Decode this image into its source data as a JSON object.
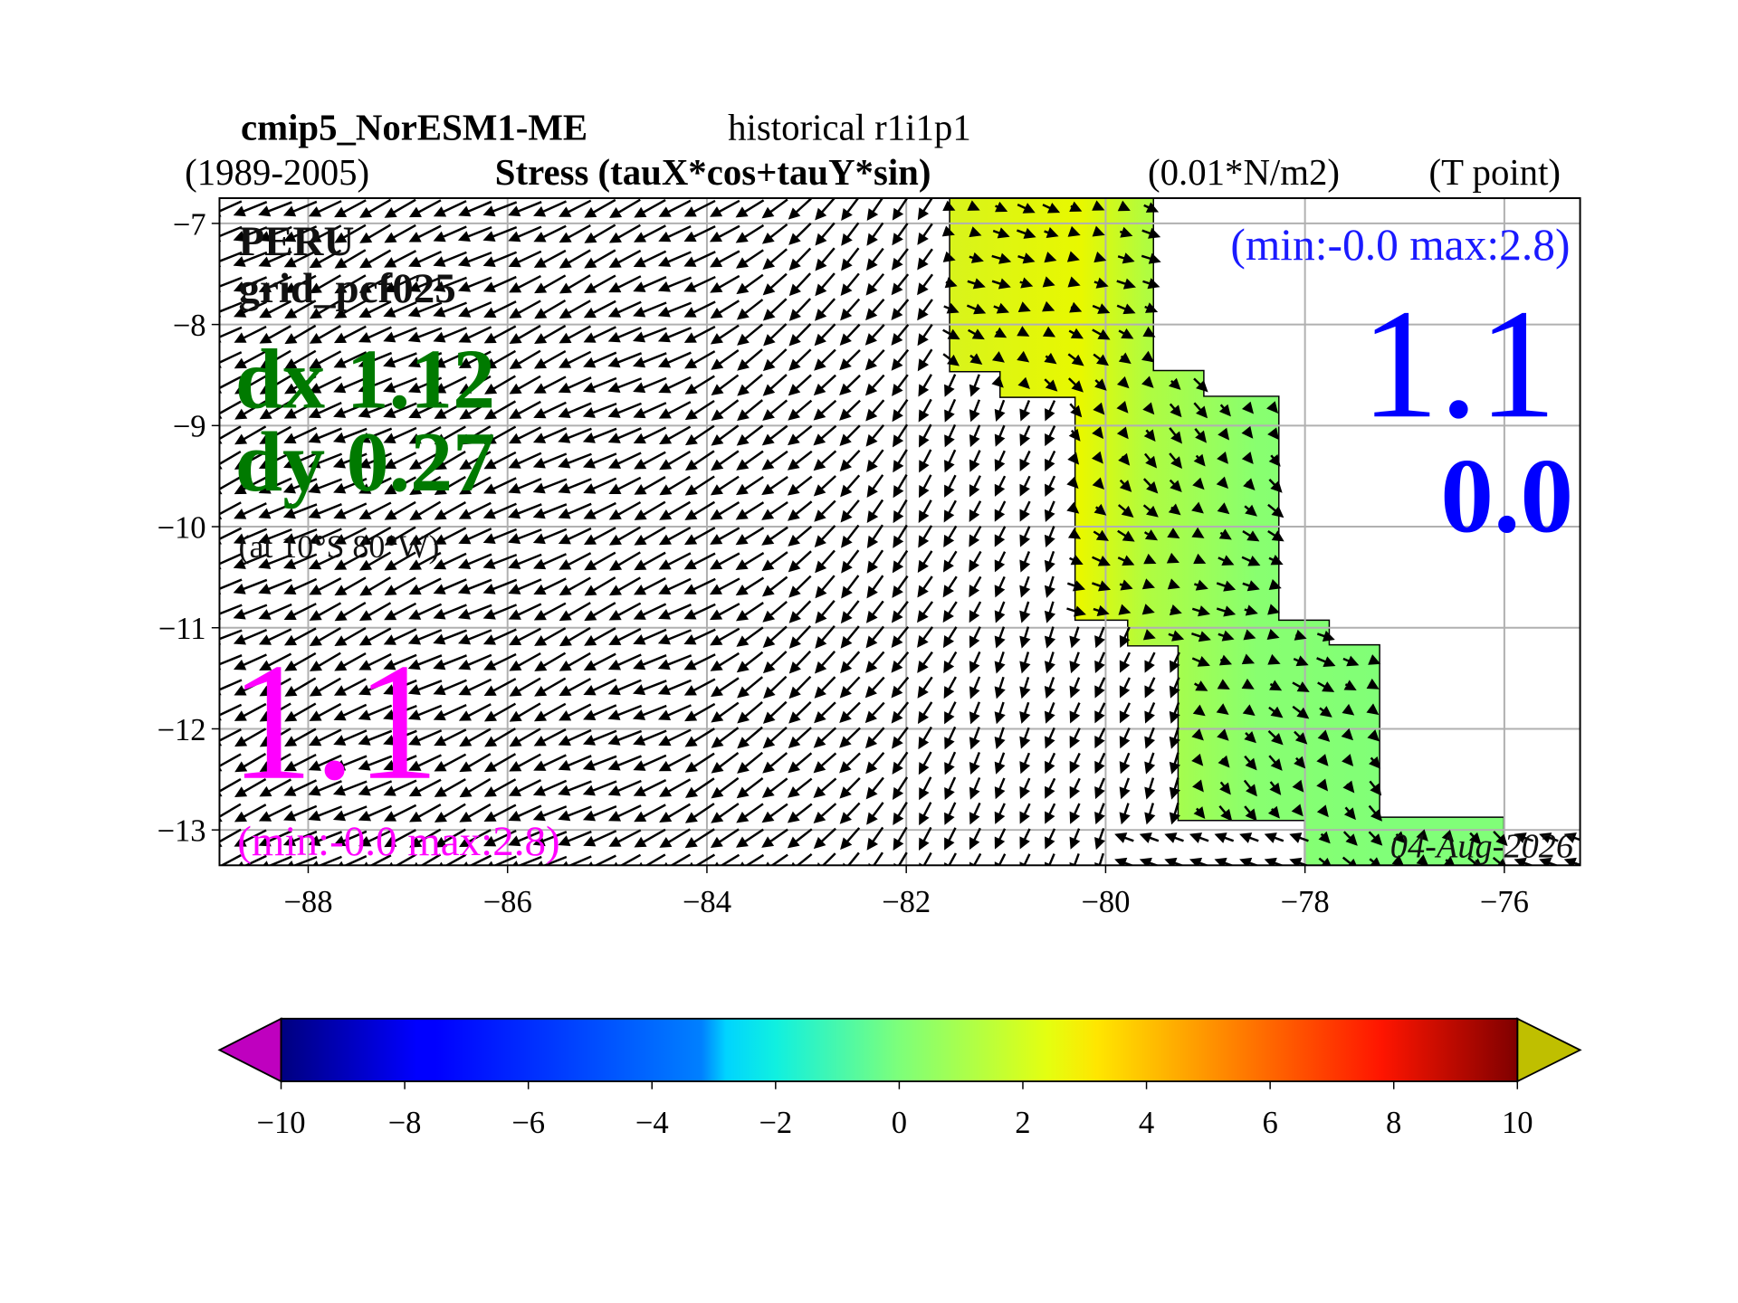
{
  "chart_data": {
    "type": "quiver",
    "title": {
      "model": "cmip5_NorESM1-ME",
      "experiment": "historical r1i1p1"
    },
    "period": "(1989-2005)",
    "variable": "Stress (tauX*cos+tauY*sin)",
    "units": "(0.01*N/m2)",
    "grid_point": "(T point)",
    "xlim": [
      -88.89,
      -75.24
    ],
    "ylim": [
      -13.35,
      -6.75
    ],
    "xticks": [
      {
        "value": -88,
        "label": "−88"
      },
      {
        "value": -86,
        "label": "−86"
      },
      {
        "value": -84,
        "label": "−84"
      },
      {
        "value": -82,
        "label": "−82"
      },
      {
        "value": -80,
        "label": "−80"
      },
      {
        "value": -78,
        "label": "−78"
      },
      {
        "value": -76,
        "label": "−76"
      }
    ],
    "yticks": [
      {
        "value": -7,
        "label": "−7"
      },
      {
        "value": -8,
        "label": "−8"
      },
      {
        "value": -9,
        "label": "−9"
      },
      {
        "value": -10,
        "label": "−10"
      },
      {
        "value": -11,
        "label": "−11"
      },
      {
        "value": -12,
        "label": "−12"
      },
      {
        "value": -13,
        "label": "−13"
      }
    ],
    "grid": true,
    "annotations": {
      "region": "PERU",
      "grid_name": "grid_pcf025",
      "dx": "dx 1.12",
      "dy": "dy 0.27",
      "location": "(at 10°S 80°W)",
      "left_value": "1.1",
      "left_range": "(min:-0.0 max:2.8)",
      "right_range": "(min:-0.0 max:2.8)",
      "right_value": "1.1",
      "right_value2": "0.0",
      "date": "04-Aug-2026"
    },
    "colorbar": {
      "lim": [
        -10,
        10
      ],
      "ticks": [
        {
          "value": -10,
          "label": "−10"
        },
        {
          "value": -8,
          "label": "−8"
        },
        {
          "value": -6,
          "label": "−6"
        },
        {
          "value": -4,
          "label": "−4"
        },
        {
          "value": -2,
          "label": "−2"
        },
        0,
        2,
        4,
        6,
        8,
        10
      ],
      "colormap": "jet",
      "under_color": "#bf00bf",
      "over_color": "#bfbf00"
    }
  }
}
